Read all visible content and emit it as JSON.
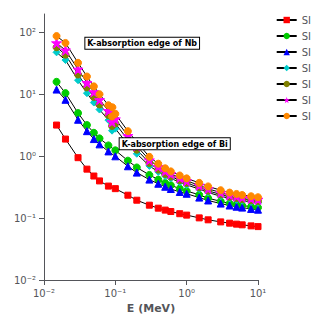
{
  "chart_data": {
    "type": "line",
    "xlabel": "E (MeV)",
    "log": true,
    "xlim": [
      0.01,
      10
    ],
    "ylim": [
      0.01,
      200
    ],
    "xticks": [
      {
        "value": 0.01,
        "label": "10⁻²"
      },
      {
        "value": 0.1,
        "label": "10⁻¹"
      },
      {
        "value": 1,
        "label": "10⁰"
      },
      {
        "value": 10,
        "label": "10¹"
      }
    ],
    "yticks": [
      {
        "value": 0.01,
        "label": "10⁻²"
      },
      {
        "value": 0.1,
        "label": "10⁻¹"
      },
      {
        "value": 1,
        "label": "10⁰"
      },
      {
        "value": 10,
        "label": "10¹"
      },
      {
        "value": 100,
        "label": "10²"
      }
    ],
    "grid": false,
    "legend": "right",
    "annotations": [
      {
        "text": "K-absorption edge of Nb",
        "x": 0.038,
        "y": 55
      },
      {
        "text": "K-absorption edge of Bi",
        "x": 0.115,
        "y": 1.3
      }
    ],
    "series": [
      {
        "name": "SI",
        "color": "#FF0000",
        "marker": "square",
        "x": [
          0.015,
          0.02,
          0.03,
          0.04,
          0.05,
          0.06,
          0.08,
          0.1,
          0.15,
          0.2,
          0.3,
          0.4,
          0.5,
          0.6,
          0.8,
          1.0,
          1.5,
          2.0,
          3.0,
          4.0,
          5.0,
          6.0,
          8.0,
          10.0
        ],
        "values": [
          3.2,
          1.9,
          0.95,
          0.62,
          0.48,
          0.4,
          0.33,
          0.3,
          0.235,
          0.195,
          0.162,
          0.145,
          0.135,
          0.128,
          0.118,
          0.112,
          0.101,
          0.094,
          0.087,
          0.083,
          0.08,
          0.078,
          0.075,
          0.073
        ]
      },
      {
        "name": "SI",
        "color": "#00CC00",
        "marker": "circle",
        "x": [
          0.015,
          0.02,
          0.03,
          0.04,
          0.05,
          0.06,
          0.08,
          0.1,
          0.15,
          0.2,
          0.3,
          0.4,
          0.5,
          0.6,
          0.8,
          1.0,
          1.5,
          2.0,
          3.0,
          4.0,
          5.0,
          6.0,
          8.0,
          10.0
        ],
        "values": [
          16.0,
          10.5,
          5.0,
          3.2,
          2.4,
          1.95,
          1.5,
          1.25,
          0.85,
          0.66,
          0.5,
          0.42,
          0.37,
          0.34,
          0.3,
          0.275,
          0.238,
          0.21,
          0.187,
          0.173,
          0.166,
          0.16,
          0.153,
          0.148
        ]
      },
      {
        "name": "SI",
        "color": "#0000FF",
        "marker": "triangle",
        "x": [
          0.015,
          0.02,
          0.03,
          0.04,
          0.05,
          0.06,
          0.08,
          0.1,
          0.15,
          0.2,
          0.3,
          0.4,
          0.5,
          0.6,
          0.8,
          1.0,
          1.5,
          2.0,
          3.0,
          4.0,
          5.0,
          6.0,
          8.0,
          10.0
        ],
        "values": [
          12.0,
          8.2,
          3.9,
          2.55,
          1.9,
          1.56,
          1.2,
          1.0,
          0.69,
          0.545,
          0.42,
          0.36,
          0.322,
          0.296,
          0.265,
          0.248,
          0.215,
          0.193,
          0.172,
          0.16,
          0.153,
          0.148,
          0.141,
          0.137
        ]
      },
      {
        "name": "SI",
        "color": "#00CCCC",
        "marker": "diamond",
        "x": [
          0.015,
          0.02,
          0.03,
          0.04,
          0.05,
          0.06,
          0.08,
          0.0899,
          0.091,
          0.1,
          0.15,
          0.2,
          0.3,
          0.4,
          0.5,
          0.6,
          0.8,
          1.0,
          1.5,
          2.0,
          3.0,
          4.0,
          5.0,
          6.0,
          8.0,
          10.0
        ],
        "values": [
          48.0,
          36.0,
          17.0,
          10.5,
          7.4,
          5.7,
          3.85,
          2.6,
          3.5,
          2.8,
          1.55,
          1.1,
          0.7,
          0.56,
          0.48,
          0.44,
          0.38,
          0.345,
          0.295,
          0.26,
          0.226,
          0.208,
          0.198,
          0.191,
          0.183,
          0.177
        ]
      },
      {
        "name": "SI",
        "color": "#808000",
        "marker": "circle",
        "x": [
          0.015,
          0.02,
          0.03,
          0.04,
          0.05,
          0.06,
          0.08,
          0.0899,
          0.091,
          0.1,
          0.15,
          0.2,
          0.3,
          0.4,
          0.5,
          0.6,
          0.8,
          1.0,
          1.5,
          2.0,
          3.0,
          4.0,
          5.0,
          6.0,
          8.0,
          10.0
        ],
        "values": [
          58.0,
          44.0,
          21.0,
          13.0,
          9.1,
          6.9,
          4.65,
          3.1,
          4.3,
          3.4,
          1.85,
          1.28,
          0.78,
          0.61,
          0.52,
          0.47,
          0.41,
          0.37,
          0.315,
          0.277,
          0.241,
          0.221,
          0.211,
          0.203,
          0.194,
          0.188
        ]
      },
      {
        "name": "SI",
        "color": "#FF00FF",
        "marker": "star",
        "x": [
          0.015,
          0.02,
          0.03,
          0.04,
          0.05,
          0.06,
          0.08,
          0.0899,
          0.091,
          0.1,
          0.15,
          0.2,
          0.3,
          0.4,
          0.5,
          0.6,
          0.8,
          1.0,
          1.5,
          2.0,
          3.0,
          4.0,
          5.0,
          6.0,
          8.0,
          10.0
        ],
        "values": [
          68.0,
          52.0,
          25.5,
          15.5,
          11.0,
          8.2,
          5.45,
          3.6,
          5.1,
          4.0,
          2.15,
          1.47,
          0.87,
          0.68,
          0.58,
          0.52,
          0.45,
          0.4,
          0.34,
          0.298,
          0.259,
          0.238,
          0.226,
          0.217,
          0.208,
          0.201
        ]
      },
      {
        "name": "SI",
        "color": "#FF8800",
        "marker": "circle",
        "x": [
          0.015,
          0.02,
          0.03,
          0.04,
          0.05,
          0.06,
          0.08,
          0.0899,
          0.091,
          0.1,
          0.15,
          0.2,
          0.3,
          0.4,
          0.5,
          0.6,
          0.8,
          1.0,
          1.5,
          2.0,
          3.0,
          4.0,
          5.0,
          6.0,
          8.0,
          10.0
        ],
        "values": [
          88.0,
          68.0,
          32.5,
          19.5,
          13.5,
          10.1,
          6.7,
          4.4,
          6.2,
          4.85,
          2.55,
          1.7,
          0.98,
          0.76,
          0.64,
          0.57,
          0.49,
          0.44,
          0.372,
          0.326,
          0.283,
          0.259,
          0.246,
          0.237,
          0.226,
          0.218
        ]
      }
    ]
  }
}
